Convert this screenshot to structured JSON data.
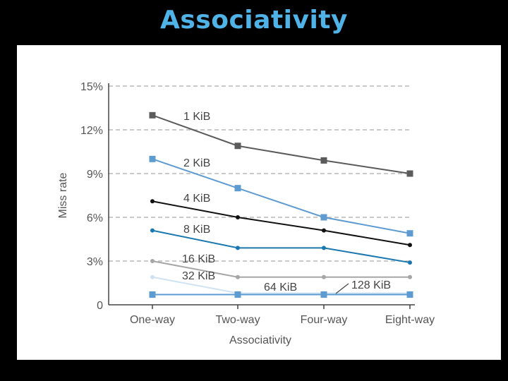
{
  "slide": {
    "title": "Associativity"
  },
  "chart_data": {
    "type": "line",
    "title": "",
    "xlabel": "Associativity",
    "ylabel": "Miss rate",
    "categories": [
      "One-way",
      "Two-way",
      "Four-way",
      "Eight-way"
    ],
    "ylim": [
      0,
      15
    ],
    "yticks": [
      0,
      3,
      6,
      9,
      12,
      15
    ],
    "ytick_labels": [
      "0",
      "3%",
      "6%",
      "9%",
      "12%",
      "15%"
    ],
    "grid": "horizontal-dashed",
    "series": [
      {
        "name": "1 KiB",
        "values": [
          13.0,
          10.9,
          9.9,
          9.0
        ],
        "color": "#5b5b5b",
        "marker": "square"
      },
      {
        "name": "2 KiB",
        "values": [
          10.0,
          8.0,
          6.0,
          4.9
        ],
        "color": "#5e9bd1",
        "marker": "square"
      },
      {
        "name": "4 KiB",
        "values": [
          7.1,
          6.0,
          5.1,
          4.1
        ],
        "color": "#111111",
        "marker": "circle"
      },
      {
        "name": "8 KiB",
        "values": [
          5.1,
          3.9,
          3.9,
          2.9
        ],
        "color": "#1a78b0",
        "marker": "circle"
      },
      {
        "name": "16 KiB",
        "values": [
          3.0,
          1.9,
          1.9,
          1.9
        ],
        "color": "#a6a6a6",
        "marker": "circle"
      },
      {
        "name": "32 KiB",
        "values": [
          1.9,
          0.8,
          0.8,
          0.8
        ],
        "color": "#cfe3f3",
        "marker": "circle"
      },
      {
        "name": "64 KiB",
        "values": [
          0.7,
          0.7,
          0.7,
          0.7
        ],
        "color": "#1f6fa8",
        "marker": "square"
      },
      {
        "name": "128 KiB",
        "values": [
          0.7,
          0.7,
          0.7,
          0.7
        ],
        "color": "#5e9bd1",
        "marker": "square"
      }
    ]
  }
}
